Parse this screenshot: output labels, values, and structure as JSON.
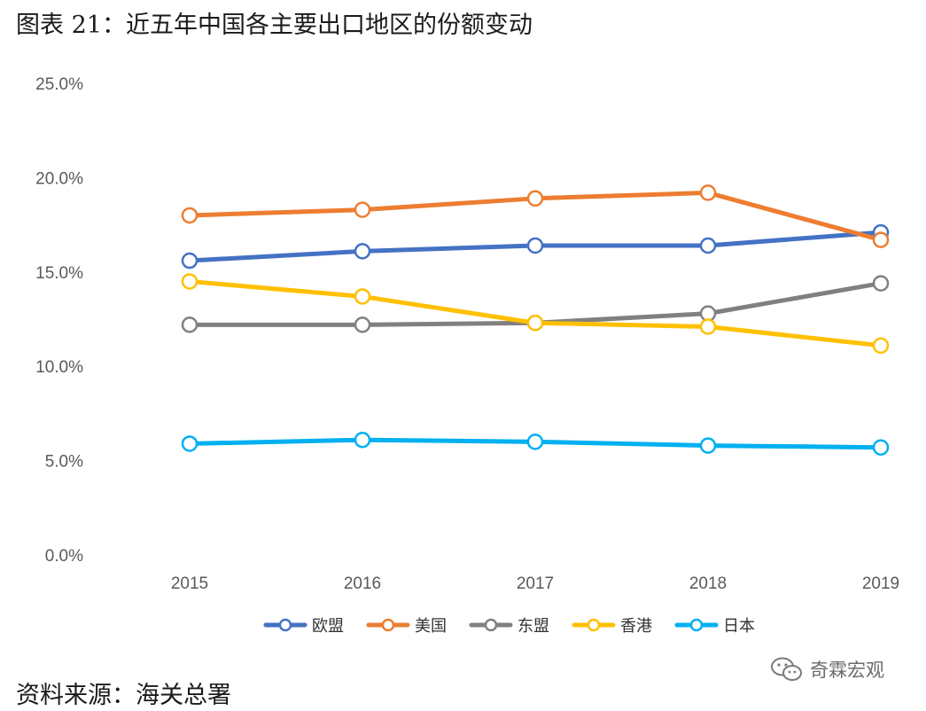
{
  "figure": {
    "title": "图表 21：近五年中国各主要出口地区的份额变动",
    "source": "资料来源：海关总署",
    "watermark": "奇霖宏观"
  },
  "chart_data": {
    "type": "line",
    "title": "",
    "xlabel": "",
    "ylabel": "",
    "categories": [
      "2015",
      "2016",
      "2017",
      "2018",
      "2019"
    ],
    "ylim": [
      0,
      0.25
    ],
    "yticks": [
      "0.0%",
      "5.0%",
      "10.0%",
      "15.0%",
      "20.0%",
      "25.0%"
    ],
    "ytick_values": [
      0,
      0.05,
      0.1,
      0.15,
      0.2,
      0.25
    ],
    "grid": false,
    "legend": "bottom",
    "marker": "open-circle",
    "series": [
      {
        "name": "欧盟",
        "color": "#4472C4",
        "values": [
          0.156,
          0.161,
          0.164,
          0.164,
          0.171
        ]
      },
      {
        "name": "美国",
        "color": "#ED7D31",
        "values": [
          0.18,
          0.183,
          0.189,
          0.192,
          0.167
        ]
      },
      {
        "name": "东盟",
        "color": "#808080",
        "values": [
          0.122,
          0.122,
          0.123,
          0.128,
          0.144
        ]
      },
      {
        "name": "香港",
        "color": "#FFC000",
        "values": [
          0.145,
          0.137,
          0.123,
          0.121,
          0.111
        ]
      },
      {
        "name": "日本",
        "color": "#00B0F0",
        "values": [
          0.059,
          0.061,
          0.06,
          0.058,
          0.057
        ]
      }
    ]
  }
}
